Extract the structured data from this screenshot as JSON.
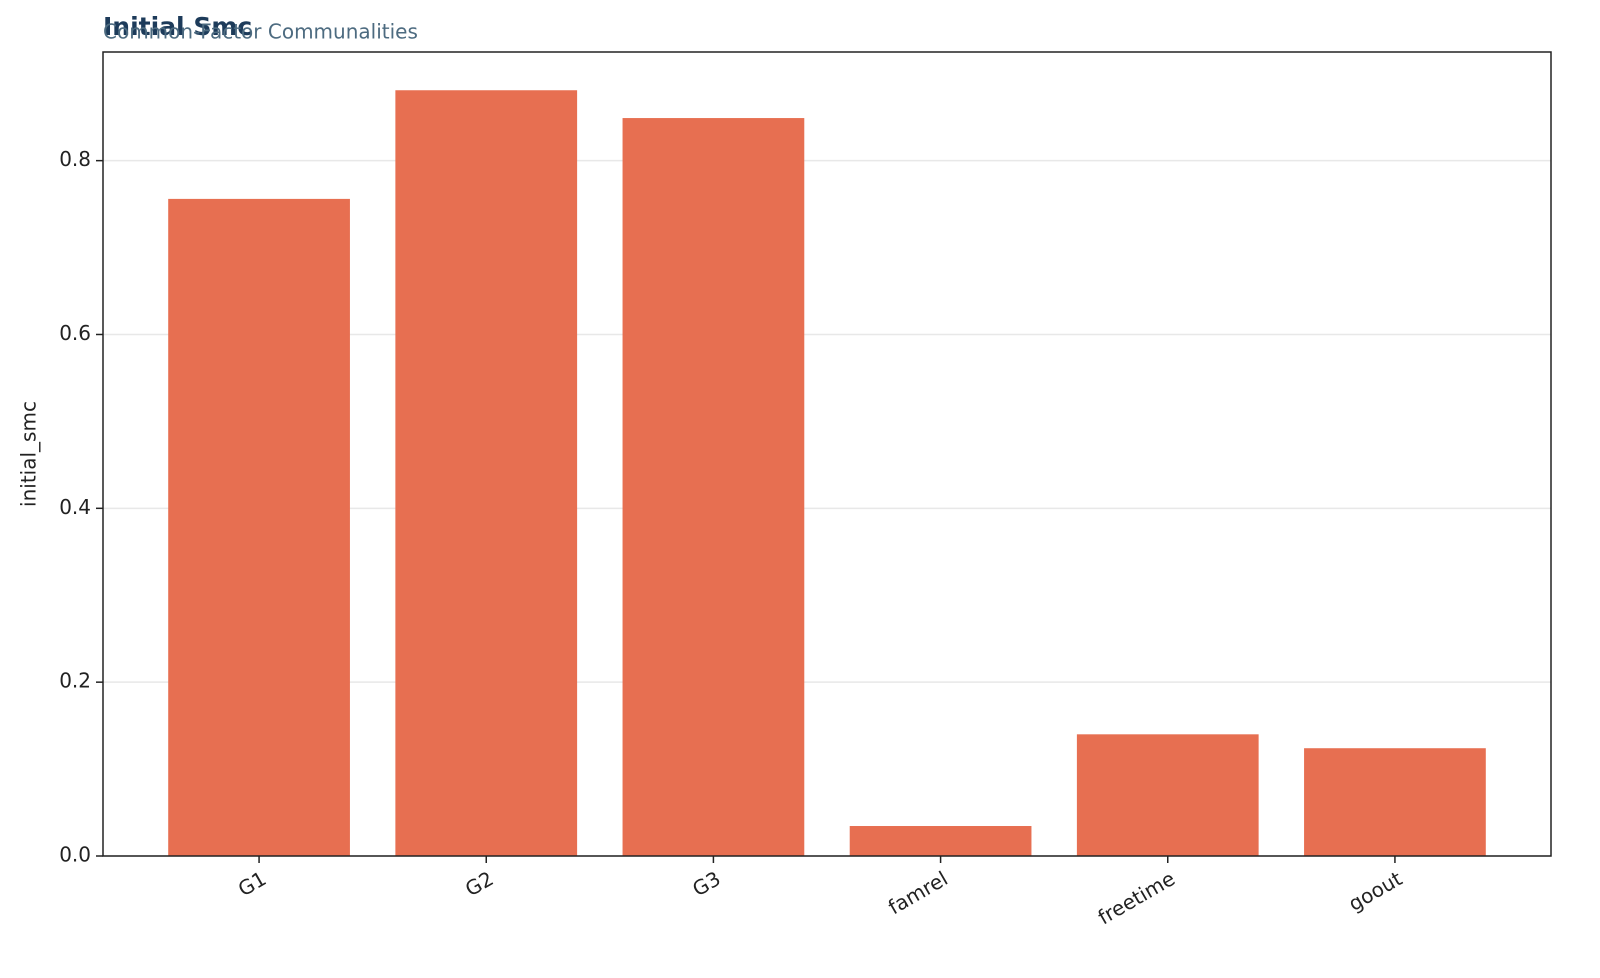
{
  "chart_data": {
    "type": "bar",
    "title": "Initial Smc",
    "subtitle": "Common-Factor Communalities",
    "y_label": "initial_smc",
    "categories": [
      "G1",
      "G2",
      "G3",
      "famrel",
      "freetime",
      "goout"
    ],
    "values": [
      0.756,
      0.881,
      0.849,
      0.0345,
      0.14,
      0.124
    ],
    "color": "#e76f51",
    "ylim": [
      0,
      0.925
    ],
    "yticks": [
      {
        "value": 0,
        "label": "0.0"
      },
      0.2,
      0.4,
      0.6,
      0.8
    ],
    "grid": true
  }
}
